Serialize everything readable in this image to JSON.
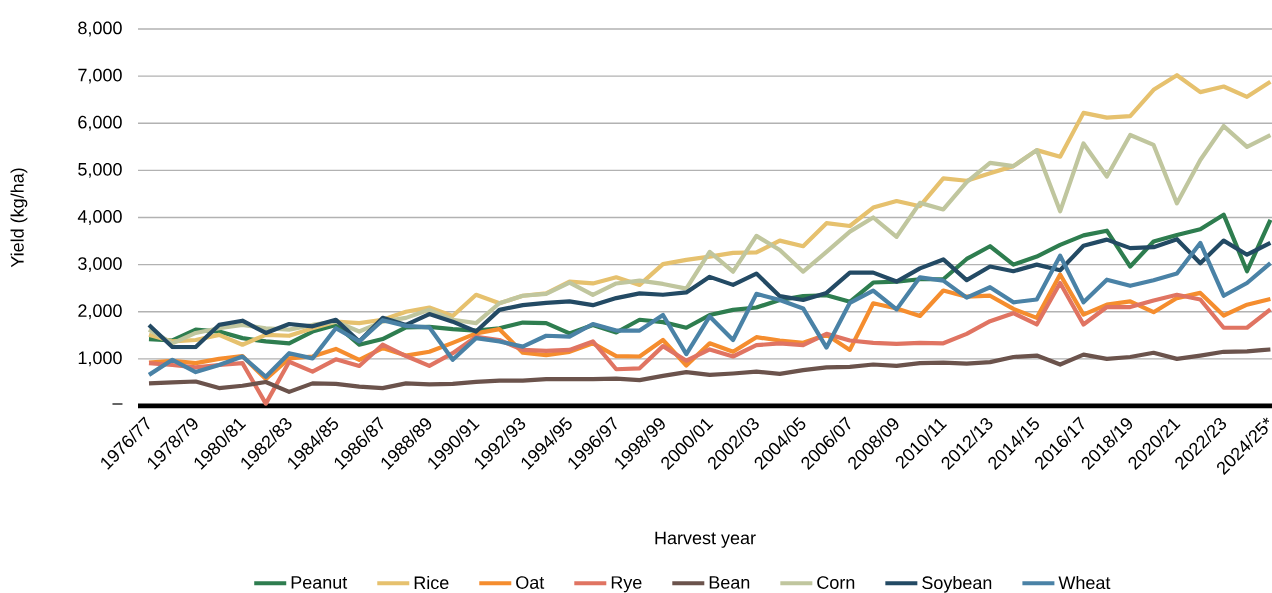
{
  "chart_data": {
    "type": "line",
    "xlabel": "Harvest year",
    "ylabel": "Yield (kg/ha)",
    "categories": [
      "1976/77",
      null,
      "1978/79",
      null,
      "1980/81",
      null,
      "1982/83",
      null,
      "1984/85",
      null,
      "1986/87",
      null,
      "1988/89",
      null,
      "1990/91",
      null,
      "1992/93",
      null,
      "1994/95",
      null,
      "1996/97",
      null,
      "1998/99",
      null,
      "2000/01",
      null,
      "2002/03",
      null,
      "2004/05",
      null,
      "2006/07",
      null,
      "2008/09",
      null,
      "2010/11",
      null,
      "2012/13",
      null,
      "2014/15",
      null,
      "2016/17",
      null,
      "2018/19",
      null,
      "2020/21",
      null,
      "2022/23",
      null,
      "2024/25*"
    ],
    "series": [
      {
        "name": "Peanut",
        "color": "#2e7d4f",
        "values": [
          1420,
          1390,
          1620,
          1580,
          1440,
          1370,
          1330,
          1580,
          1720,
          1300,
          1420,
          1670,
          1680,
          1630,
          1600,
          1650,
          1770,
          1760,
          1540,
          1720,
          1560,
          1830,
          1780,
          1660,
          1930,
          2040,
          2090,
          2250,
          2330,
          2350,
          2210,
          2620,
          2640,
          2690,
          2690,
          3120,
          3390,
          3000,
          3170,
          3420,
          3620,
          3720,
          2960,
          3490,
          3630,
          3750,
          4060,
          2860,
          3950
        ]
      },
      {
        "name": "Rice",
        "color": "#e6c16e",
        "values": [
          1510,
          1370,
          1400,
          1510,
          1300,
          1510,
          1490,
          1650,
          1790,
          1760,
          1830,
          2000,
          2090,
          1910,
          2360,
          2180,
          2340,
          2390,
          2640,
          2600,
          2730,
          2570,
          3010,
          3100,
          3170,
          3250,
          3260,
          3510,
          3390,
          3880,
          3820,
          4210,
          4350,
          4240,
          4830,
          4780,
          4940,
          5090,
          5430,
          5290,
          6220,
          6120,
          6150,
          6710,
          7020,
          6660,
          6780,
          6560,
          6880
        ]
      },
      {
        "name": "Oat",
        "color": "#f58d2e",
        "values": [
          920,
          960,
          910,
          1000,
          1060,
          570,
          1010,
          1050,
          1210,
          980,
          1230,
          1070,
          1150,
          1340,
          1540,
          1630,
          1130,
          1080,
          1150,
          1330,
          1060,
          1050,
          1400,
          860,
          1330,
          1150,
          1460,
          1390,
          1340,
          1510,
          1190,
          2180,
          2070,
          1910,
          2450,
          2320,
          2340,
          2060,
          1870,
          2790,
          1940,
          2150,
          2220,
          1990,
          2290,
          2400,
          1920,
          2150,
          2270
        ]
      },
      {
        "name": "Rye",
        "color": "#e07462",
        "values": [
          910,
          870,
          820,
          870,
          910,
          50,
          940,
          730,
          990,
          850,
          1300,
          1060,
          850,
          1120,
          1470,
          1400,
          1190,
          1170,
          1190,
          1370,
          780,
          800,
          1270,
          960,
          1200,
          1050,
          1290,
          1330,
          1290,
          1530,
          1390,
          1340,
          1320,
          1340,
          1330,
          1530,
          1800,
          1970,
          1730,
          2610,
          1730,
          2100,
          2100,
          2240,
          2360,
          2260,
          1660,
          1660,
          2050
        ]
      },
      {
        "name": "Bean",
        "color": "#6b534c",
        "values": [
          480,
          500,
          520,
          380,
          430,
          510,
          300,
          480,
          470,
          410,
          380,
          480,
          460,
          470,
          510,
          540,
          540,
          570,
          570,
          570,
          580,
          550,
          640,
          720,
          660,
          690,
          730,
          680,
          760,
          820,
          830,
          880,
          850,
          910,
          920,
          900,
          930,
          1040,
          1070,
          880,
          1090,
          1000,
          1040,
          1130,
          1000,
          1070,
          1150,
          1160,
          1200
        ]
      },
      {
        "name": "Corn",
        "color": "#c0c69e",
        "values": [
          1620,
          1330,
          1550,
          1650,
          1720,
          1650,
          1620,
          1720,
          1790,
          1580,
          1790,
          1870,
          2040,
          1830,
          1760,
          2180,
          2340,
          2380,
          2620,
          2360,
          2600,
          2660,
          2590,
          2490,
          3270,
          2850,
          3610,
          3310,
          2850,
          3270,
          3700,
          4000,
          3590,
          4310,
          4170,
          4750,
          5160,
          5090,
          5430,
          4130,
          5570,
          4870,
          5750,
          5540,
          4300,
          5220,
          5940,
          5500,
          5750
        ]
      },
      {
        "name": "Soybean",
        "color": "#234a64",
        "values": [
          1720,
          1250,
          1250,
          1720,
          1810,
          1550,
          1740,
          1690,
          1830,
          1370,
          1870,
          1720,
          1950,
          1790,
          1580,
          2040,
          2140,
          2190,
          2220,
          2140,
          2290,
          2390,
          2360,
          2410,
          2740,
          2570,
          2810,
          2330,
          2250,
          2400,
          2830,
          2830,
          2640,
          2920,
          3110,
          2670,
          2960,
          2860,
          3000,
          2880,
          3400,
          3530,
          3350,
          3370,
          3540,
          3030,
          3510,
          3210,
          3460
        ]
      },
      {
        "name": "Wheat",
        "color": "#4a82a6",
        "values": [
          660,
          980,
          720,
          870,
          1050,
          620,
          1120,
          1010,
          1650,
          1370,
          1820,
          1700,
          1670,
          980,
          1440,
          1370,
          1260,
          1490,
          1470,
          1740,
          1600,
          1600,
          1930,
          1100,
          1900,
          1400,
          2380,
          2250,
          2070,
          1240,
          2190,
          2450,
          2050,
          2730,
          2660,
          2300,
          2520,
          2200,
          2260,
          3190,
          2200,
          2680,
          2550,
          2670,
          2810,
          3460,
          2340,
          2610,
          3030
        ]
      }
    ],
    "ylim": [
      0,
      8000
    ],
    "yticks": [
      {
        "value": 0,
        "label": "–"
      },
      {
        "value": 1000,
        "label": "1,000"
      },
      {
        "value": 2000,
        "label": "2,000"
      },
      {
        "value": 3000,
        "label": "3,000"
      },
      {
        "value": 4000,
        "label": "4,000"
      },
      {
        "value": 5000,
        "label": "5,000"
      },
      {
        "value": 6000,
        "label": "6,000"
      },
      {
        "value": 7000,
        "label": "7,000"
      },
      {
        "value": 8000,
        "label": "8,000"
      }
    ],
    "grid": "y",
    "legend": "bottom",
    "marker": "none",
    "line_style": "solid"
  }
}
